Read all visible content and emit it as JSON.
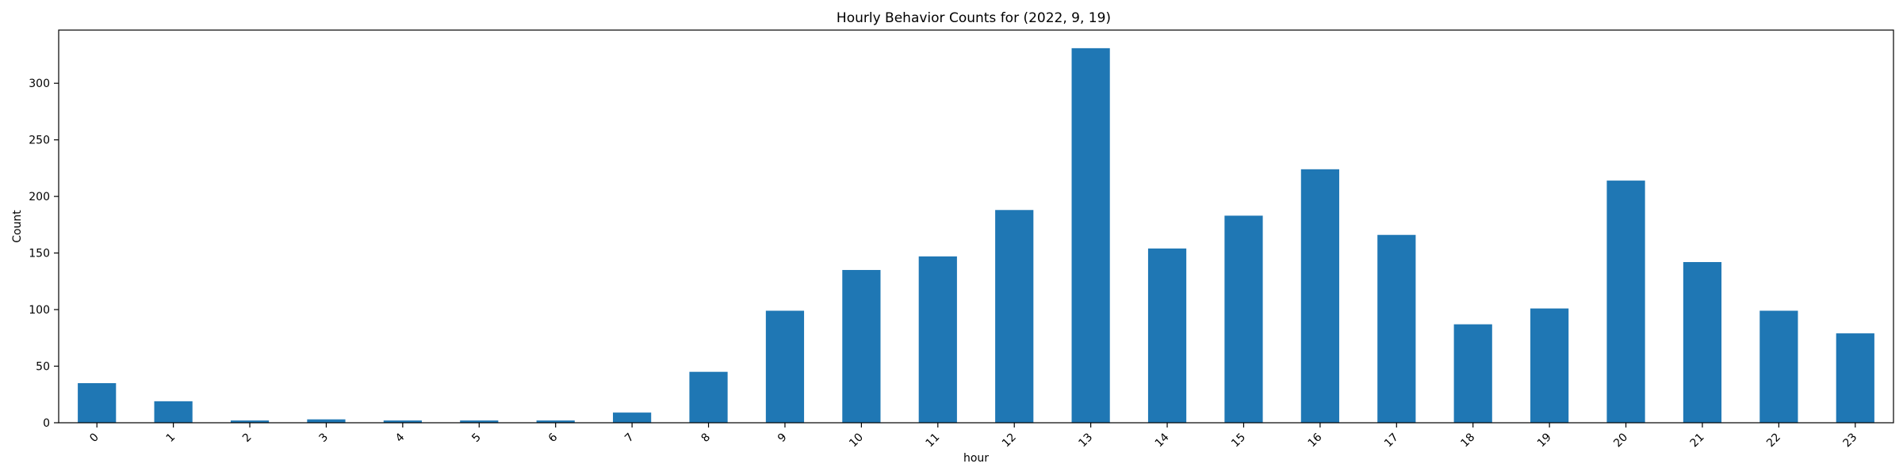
{
  "chart_data": {
    "type": "bar",
    "title": "Hourly Behavior Counts for (2022, 9, 19)",
    "xlabel": "hour",
    "ylabel": "Count",
    "categories": [
      "0",
      "1",
      "2",
      "3",
      "4",
      "5",
      "6",
      "7",
      "8",
      "9",
      "10",
      "11",
      "12",
      "13",
      "14",
      "15",
      "16",
      "17",
      "18",
      "19",
      "20",
      "21",
      "22",
      "23"
    ],
    "values": [
      35,
      19,
      2,
      3,
      2,
      2,
      2,
      9,
      45,
      99,
      135,
      147,
      188,
      331,
      154,
      183,
      224,
      166,
      87,
      101,
      214,
      142,
      99,
      79
    ],
    "ylim": [
      0,
      347
    ],
    "yticks": [
      0,
      50,
      100,
      150,
      200,
      250,
      300
    ],
    "grid": false,
    "legend": "none",
    "bar_color": "#1f77b4"
  }
}
